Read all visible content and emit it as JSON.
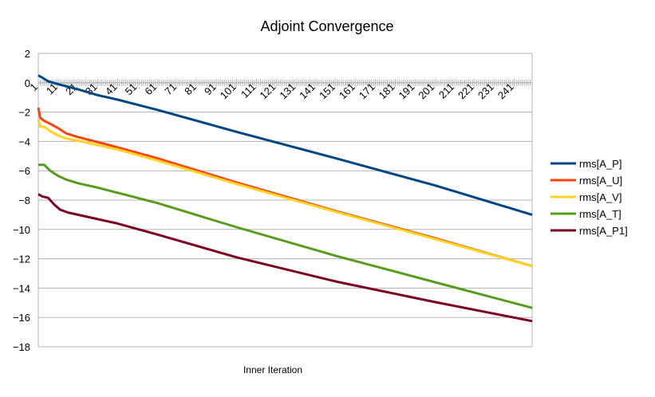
{
  "chart_data": {
    "type": "line",
    "title": "Adjoint Convergence",
    "xlabel": "Inner Iteration",
    "ylabel": "",
    "ylim": [
      -18,
      2
    ],
    "yticks": [
      2,
      0,
      -2,
      -4,
      -6,
      -8,
      -10,
      -12,
      -14,
      -16,
      -18
    ],
    "xlim": [
      1,
      250
    ],
    "xtick_labels": [
      "1",
      "11",
      "21",
      "31",
      "41",
      "51",
      "61",
      "71",
      "81",
      "91",
      "101",
      "111",
      "121",
      "131",
      "141",
      "151",
      "161",
      "171",
      "181",
      "191",
      "201",
      "211",
      "221",
      "231",
      "241"
    ],
    "grid": "horizontal",
    "legend_position": "right",
    "series": [
      {
        "name": "rms[A_P]",
        "color": "#004586",
        "points": [
          [
            1,
            0.5
          ],
          [
            3,
            0.35
          ],
          [
            6,
            0.1
          ],
          [
            11,
            -0.1
          ],
          [
            21,
            -0.45
          ],
          [
            31,
            -0.85
          ],
          [
            41,
            -1.15
          ],
          [
            61,
            -1.85
          ],
          [
            101,
            -3.35
          ],
          [
            151,
            -5.15
          ],
          [
            201,
            -7.0
          ],
          [
            250,
            -9.0
          ]
        ]
      },
      {
        "name": "rms[A_U]",
        "color": "#ff420e",
        "points": [
          [
            1,
            -1.7
          ],
          [
            2,
            -2.4
          ],
          [
            4,
            -2.6
          ],
          [
            7,
            -2.8
          ],
          [
            11,
            -3.1
          ],
          [
            15,
            -3.45
          ],
          [
            21,
            -3.7
          ],
          [
            31,
            -4.05
          ],
          [
            41,
            -4.4
          ],
          [
            61,
            -5.15
          ],
          [
            101,
            -6.8
          ],
          [
            151,
            -8.75
          ],
          [
            201,
            -10.6
          ],
          [
            250,
            -12.5
          ]
        ]
      },
      {
        "name": "rms[A_V]",
        "color": "#ffd320",
        "points": [
          [
            1,
            -2.5
          ],
          [
            2,
            -3.0
          ],
          [
            4,
            -3.0
          ],
          [
            7,
            -3.3
          ],
          [
            11,
            -3.6
          ],
          [
            15,
            -3.8
          ],
          [
            21,
            -3.95
          ],
          [
            31,
            -4.25
          ],
          [
            41,
            -4.55
          ],
          [
            61,
            -5.3
          ],
          [
            101,
            -6.9
          ],
          [
            151,
            -8.8
          ],
          [
            201,
            -10.65
          ],
          [
            250,
            -12.5
          ]
        ]
      },
      {
        "name": "rms[A_T]",
        "color": "#579d1c",
        "points": [
          [
            1,
            -5.6
          ],
          [
            4,
            -5.6
          ],
          [
            7,
            -6.0
          ],
          [
            11,
            -6.35
          ],
          [
            15,
            -6.6
          ],
          [
            21,
            -6.85
          ],
          [
            31,
            -7.15
          ],
          [
            41,
            -7.5
          ],
          [
            61,
            -8.2
          ],
          [
            101,
            -9.85
          ],
          [
            151,
            -11.8
          ],
          [
            201,
            -13.6
          ],
          [
            250,
            -15.35
          ]
        ]
      },
      {
        "name": "rms[A_P1]",
        "color": "#7e0021",
        "points": [
          [
            1,
            -7.6
          ],
          [
            3,
            -7.75
          ],
          [
            6,
            -7.85
          ],
          [
            9,
            -8.3
          ],
          [
            12,
            -8.65
          ],
          [
            16,
            -8.85
          ],
          [
            21,
            -9.0
          ],
          [
            31,
            -9.3
          ],
          [
            41,
            -9.6
          ],
          [
            61,
            -10.35
          ],
          [
            101,
            -11.9
          ],
          [
            151,
            -13.55
          ],
          [
            201,
            -14.95
          ],
          [
            250,
            -16.25
          ]
        ]
      }
    ]
  }
}
